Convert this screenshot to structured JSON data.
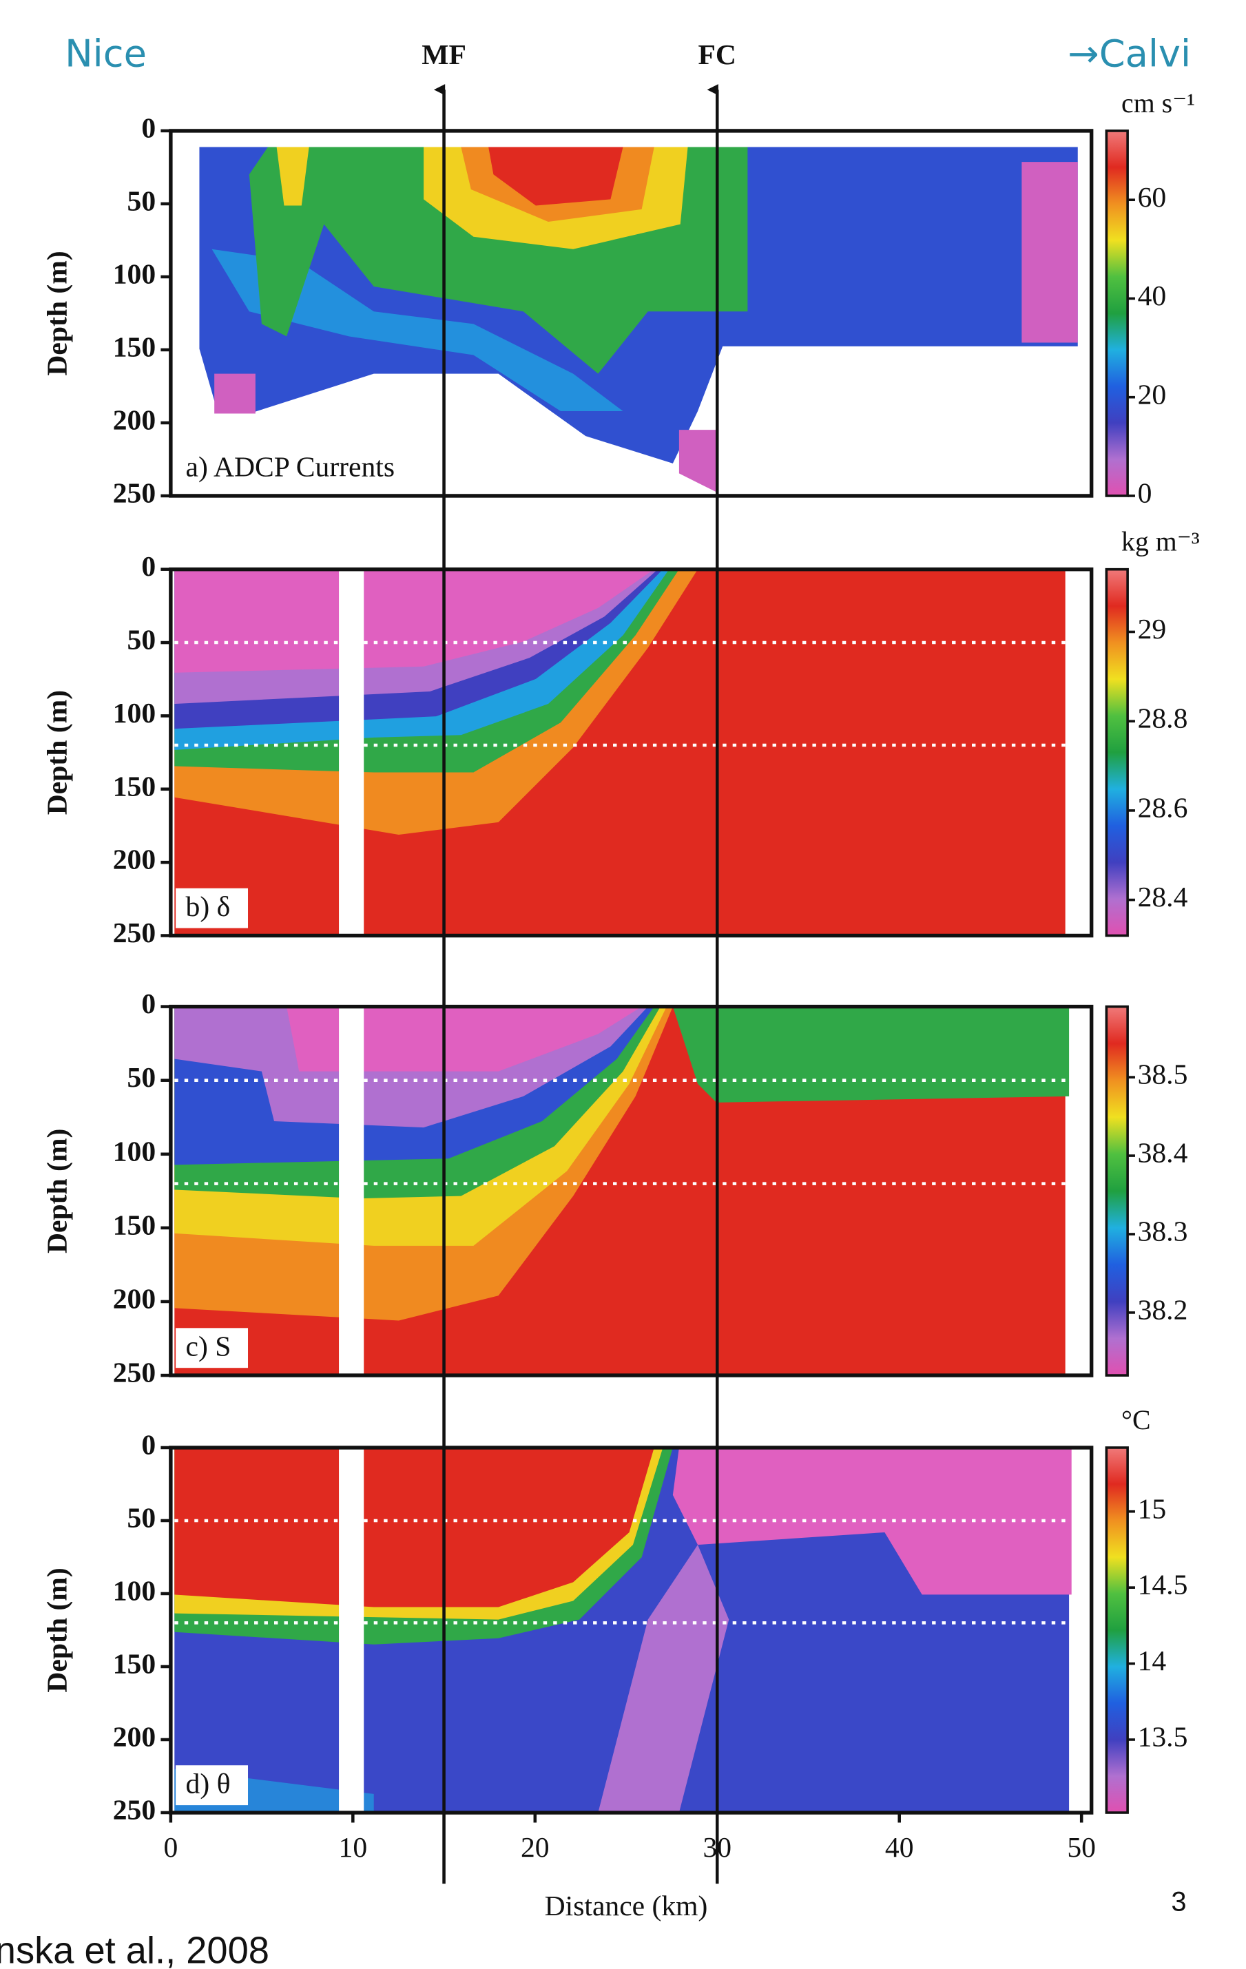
{
  "page": {
    "left_label": "Nice",
    "right_label": "→Calvi",
    "citation": "nska et al., 2008",
    "page_number": "3",
    "fronts": [
      {
        "label": "MF",
        "x": 15
      },
      {
        "label": "FC",
        "x": 30
      }
    ]
  },
  "chart_data": [
    {
      "type": "heatmap",
      "title": "a) ADCP Currents",
      "ylabel": "Depth (m)",
      "xlim": [
        0,
        50
      ],
      "ylim": [
        0,
        250
      ],
      "y_reversed": true,
      "yticks": [
        0,
        50,
        100,
        150,
        200,
        250
      ],
      "dotted_lines": [],
      "colorbar": {
        "label": "cm s⁻¹",
        "lim": [
          0,
          74
        ],
        "ticks": [
          0,
          20,
          40,
          60
        ],
        "colors": [
          "#e050b0",
          "#b070d0",
          "#4040c0",
          "#2060e0",
          "#20b0e0",
          "#20a040",
          "#50c040",
          "#f0e020",
          "#f09020",
          "#e02a20",
          "#f07a7a"
        ]
      }
    },
    {
      "type": "heatmap",
      "title": "b) δ",
      "ylabel": "Depth (m)",
      "xlim": [
        0,
        50
      ],
      "ylim": [
        0,
        250
      ],
      "y_reversed": true,
      "yticks": [
        0,
        50,
        100,
        150,
        200,
        250
      ],
      "dotted_lines": [
        50,
        120
      ],
      "colorbar": {
        "label": "kg m⁻³",
        "lim": [
          28.32,
          29.14
        ],
        "ticks": [
          28.4,
          28.6,
          28.8,
          29
        ],
        "colors": [
          "#e050b0",
          "#b070d0",
          "#4040c0",
          "#2060e0",
          "#20b0e0",
          "#20a040",
          "#50c040",
          "#f0e020",
          "#f09020",
          "#e02a20",
          "#f07a7a"
        ]
      }
    },
    {
      "type": "heatmap",
      "title": "c) S",
      "ylabel": "Depth (m)",
      "xlim": [
        0,
        50
      ],
      "ylim": [
        0,
        250
      ],
      "y_reversed": true,
      "yticks": [
        0,
        50,
        100,
        150,
        200,
        250
      ],
      "dotted_lines": [
        50,
        120
      ],
      "colorbar": {
        "label": null,
        "lim": [
          38.12,
          38.59
        ],
        "ticks": [
          38.2,
          38.3,
          38.4,
          38.5
        ],
        "colors": [
          "#e050b0",
          "#b070d0",
          "#4040c0",
          "#2060e0",
          "#20b0e0",
          "#20a040",
          "#50c040",
          "#f0e020",
          "#f09020",
          "#e02a20",
          "#f07a7a"
        ]
      }
    },
    {
      "type": "heatmap",
      "title": "d) θ",
      "ylabel": "Depth (m)",
      "xlabel": "Distance (km)",
      "xlim": [
        0,
        50
      ],
      "xticks": [
        0,
        10,
        20,
        30,
        40,
        50
      ],
      "ylim": [
        0,
        250
      ],
      "y_reversed": true,
      "yticks": [
        0,
        50,
        100,
        150,
        200,
        250
      ],
      "dotted_lines": [
        50,
        120
      ],
      "colorbar": {
        "label": "°C",
        "lim": [
          13.02,
          15.42
        ],
        "ticks": [
          13.5,
          14,
          14.5,
          15
        ],
        "colors": [
          "#e050b0",
          "#b070d0",
          "#4040c0",
          "#2060e0",
          "#20b0e0",
          "#20a040",
          "#50c040",
          "#f0e020",
          "#f09020",
          "#e02a20",
          "#f07a7a"
        ]
      }
    }
  ]
}
